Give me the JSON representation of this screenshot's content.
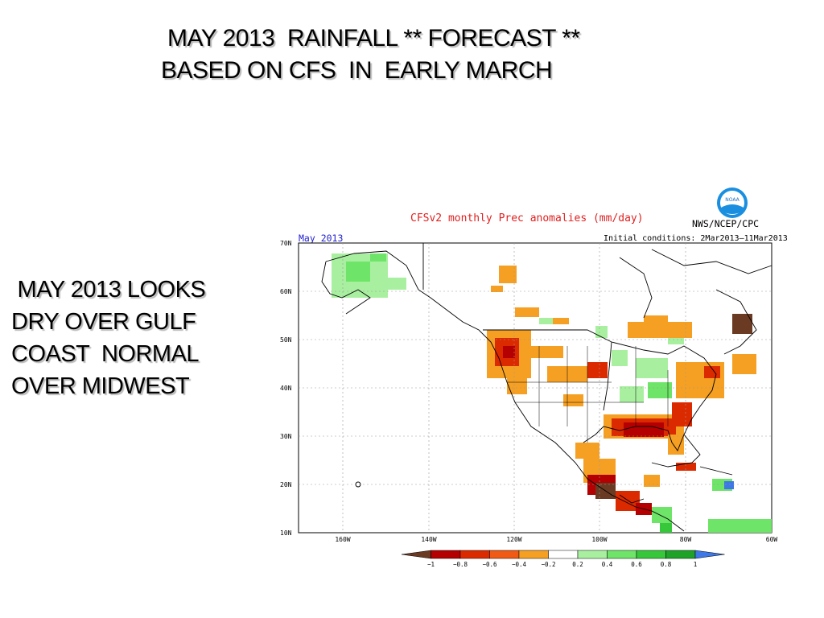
{
  "slide": {
    "title_line1": "MAY 2013  RAINFALL ** FORECAST **",
    "title_line2": "BASED ON CFS  IN  EARLY MARCH",
    "side_lines": [
      " MAY 2013 LOOKS",
      "DRY OVER GULF",
      "COAST  NORMAL",
      "OVER MIDWEST"
    ]
  },
  "figure": {
    "title": "CFSv2 monthly Prec anomalies (mm/day)",
    "month_label": "May 2013",
    "initial_conditions": "Initial conditions: 2Mar2013–11Mar2013",
    "agency": "NWS/NCEP/CPC",
    "logo_text": "NOAA",
    "lat_labels": [
      "70N",
      "60N",
      "50N",
      "40N",
      "30N",
      "20N",
      "10N"
    ],
    "lon_labels": [
      "160W",
      "140W",
      "120W",
      "100W",
      "80W",
      "60W"
    ]
  },
  "legend": {
    "ticks": [
      "−1",
      "−0.8",
      "−0.6",
      "−0.4",
      "−0.2",
      "0.2",
      "0.4",
      "0.6",
      "0.8",
      "1"
    ],
    "colors": [
      "#6b3a22",
      "#b40000",
      "#dc2a00",
      "#f05a14",
      "#f5a023",
      "#ffffff",
      "#a8f0a0",
      "#6ee468",
      "#36c83a",
      "#1ea228",
      "#3d78e6"
    ]
  },
  "colors": {
    "title_red": "#e02020",
    "month_blue": "#2020d0",
    "dry_strong": "#b40000",
    "dry_medium": "#dc2a00",
    "dry_light": "#f5a023",
    "wet_light": "#a8f0a0",
    "wet_medium": "#6ee468",
    "darkest": "#6b3a22"
  }
}
